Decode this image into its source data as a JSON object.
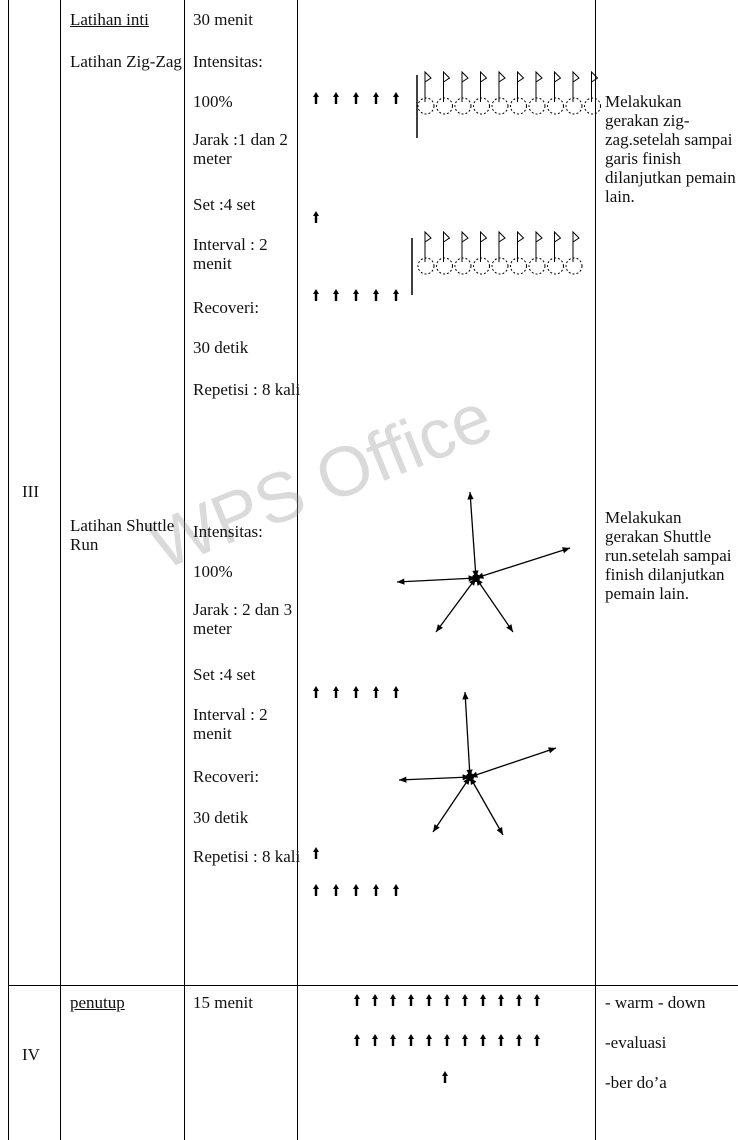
{
  "table": {
    "rows": [
      {
        "number": "III",
        "intro": {
          "activity": "Latihan inti",
          "duration": "30 menit"
        },
        "sections": [
          {
            "activity": "Latihan Zig-Zag",
            "details": [
              "Intensitas:",
              "100%",
              "Jarak :1 dan 2 meter",
              "Set :4 set",
              "Interval : 2 menit",
              "Recoveri:",
              "30 detik",
              "Repetisi : 8 kali"
            ],
            "description": "Melakukan gerakan zig-zag.setelah sampai garis finish dilanjutkan pemain lain."
          },
          {
            "activity": "Latihan Shuttle Run",
            "details": [
              "Intensitas:",
              "100%",
              "Jarak : 2 dan 3 meter",
              "Set :4 set",
              "Interval : 2 menit",
              "Recoveri:",
              "30 detik",
              "Repetisi : 8 kali"
            ],
            "description": "Melakukan gerakan Shuttle run.setelah sampai finish dilanjutkan pemain lain."
          }
        ]
      },
      {
        "number": "IV",
        "activity": "penutup",
        "duration": "15 menit",
        "notes": [
          "- warm - down",
          "-evaluasi",
          "-ber do’a"
        ]
      }
    ]
  },
  "watermark": "WPS Office"
}
